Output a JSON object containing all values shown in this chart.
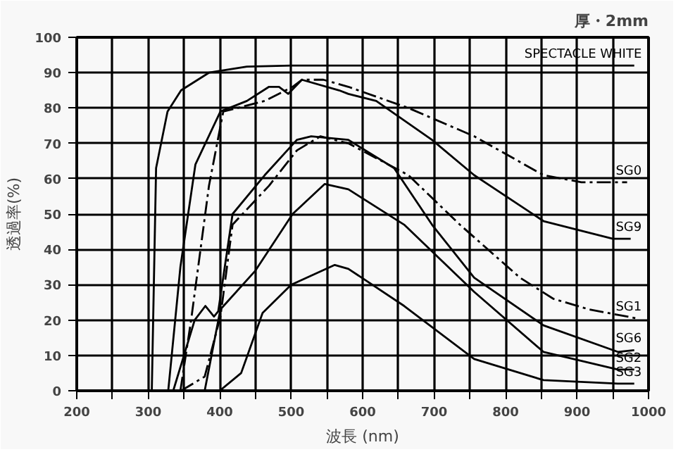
{
  "chart_data": {
    "type": "line",
    "title": "厚・2mm",
    "xlabel": "波長 (nm)",
    "ylabel": "透過率(%)",
    "xlim": [
      200,
      1000
    ],
    "ylim": [
      0,
      100
    ],
    "xticks": [
      200,
      {
        "value": 250,
        "label": null
      },
      300,
      {
        "value": 350,
        "label": null
      },
      400,
      {
        "value": 450,
        "label": null
      },
      500,
      {
        "value": 550,
        "label": null
      },
      600,
      {
        "value": 650,
        "label": null
      },
      700,
      {
        "value": 750,
        "label": null
      },
      800,
      {
        "value": 850,
        "label": null
      },
      900,
      {
        "value": 950,
        "label": null
      },
      1000
    ],
    "yticks": [
      0,
      10,
      20,
      30,
      40,
      50,
      60,
      70,
      80,
      90,
      100
    ],
    "grid": true,
    "marker": "none",
    "series": [
      {
        "name": "SPECTACLE WHITE",
        "color": "#000000",
        "line_style": "solid",
        "x": [
          305,
          311,
          327,
          346,
          385,
          438,
          500,
          600,
          700,
          800,
          900,
          980
        ],
        "values": [
          0,
          63,
          79,
          85,
          90,
          91.7,
          92,
          92,
          92,
          92,
          92,
          92
        ]
      },
      {
        "name": "SG0",
        "color": "#000000",
        "line_style": "dashed",
        "x": [
          345,
          360,
          385,
          405,
          463,
          502,
          515,
          545,
          580,
          664,
          756,
          853,
          906,
          970
        ],
        "values": [
          0,
          20,
          58,
          79,
          82,
          86,
          88,
          88,
          86,
          80,
          72,
          61,
          59,
          59
        ]
      },
      {
        "name": "SG9",
        "color": "#000000",
        "line_style": "solid",
        "x": [
          328,
          345,
          366,
          401,
          438,
          469,
          483,
          496,
          515,
          567,
          580,
          619,
          697,
          756,
          853,
          950,
          975
        ],
        "values": [
          0,
          35,
          64,
          79,
          82,
          86,
          86,
          84,
          88,
          85,
          84,
          82,
          71,
          61,
          48,
          43,
          43
        ]
      },
      {
        "name": "SG1",
        "color": "#000000",
        "line_style": "dashed",
        "x": [
          346,
          379,
          401,
          418,
          469,
          508,
          541,
          580,
          664,
          736,
          820,
          867,
          917,
          983
        ],
        "values": [
          0,
          4,
          21,
          47,
          58,
          68,
          72,
          70,
          61,
          47,
          32,
          26,
          23,
          20.5
        ]
      },
      {
        "name": "SG6",
        "color": "#000000",
        "line_style": "solid",
        "x": [
          335,
          350,
          365,
          380,
          392,
          398,
          418,
          463,
          508,
          528,
          580,
          644,
          697,
          756,
          853,
          957,
          980
        ],
        "values": [
          0,
          10,
          20,
          24,
          21,
          22.5,
          50,
          61,
          71,
          72,
          71,
          63,
          47,
          32,
          18.5,
          11,
          11.5
        ]
      },
      {
        "name": "SG2",
        "color": "#000000",
        "line_style": "solid",
        "x": [
          379,
          401,
          450,
          502,
          547,
          580,
          658,
          756,
          853,
          957,
          980
        ],
        "values": [
          0,
          23,
          34,
          50,
          58.5,
          57,
          47,
          28,
          11,
          6,
          6
        ]
      },
      {
        "name": "SG3",
        "color": "#000000",
        "line_style": "solid",
        "x": [
          400,
          430,
          460,
          500,
          561,
          580,
          658,
          756,
          853,
          957,
          980
        ],
        "values": [
          0,
          5,
          22,
          30,
          35.6,
          34.5,
          24,
          9,
          3,
          2,
          2
        ]
      }
    ]
  }
}
